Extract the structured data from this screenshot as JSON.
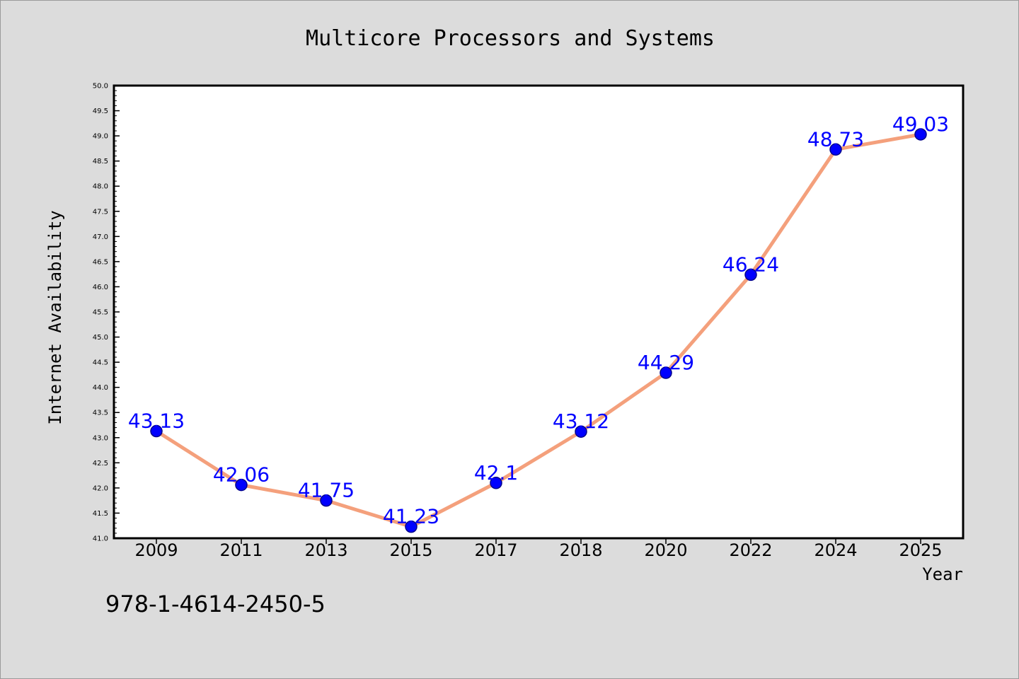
{
  "chart_data": {
    "type": "line",
    "title": "Multicore Processors and Systems",
    "xlabel": "Year",
    "ylabel": "Internet Availability",
    "categories": [
      "2009",
      "2011",
      "2013",
      "2015",
      "2017",
      "2018",
      "2020",
      "2022",
      "2024",
      "2025"
    ],
    "series": [
      {
        "values": [
          43.13,
          42.06,
          41.75,
          41.23,
          42.1,
          43.12,
          44.29,
          46.24,
          48.73,
          49.03
        ],
        "labels": [
          "43.13",
          "42.06",
          "41.75",
          "41.23",
          "42.1",
          "43.12",
          "44.29",
          "46.24",
          "48.73",
          "49.03"
        ]
      }
    ],
    "ylim": [
      41.0,
      50.0
    ],
    "yticks": [
      "41.0",
      "41.5",
      "42.0",
      "42.5",
      "43.0",
      "43.5",
      "44.0",
      "44.5",
      "45.0",
      "45.5",
      "46.0",
      "46.5",
      "47.0",
      "47.5",
      "48.0",
      "48.5",
      "49.0",
      "49.5",
      "50.0"
    ],
    "grid": false,
    "colors": {
      "line": "#f4a07c",
      "marker": "#0000ff",
      "marker_edge": "#00008b",
      "data_label": "#0000ff",
      "background": "#dcdcdc",
      "plot_background": "#ffffff"
    }
  },
  "footnote": "978-1-4614-2450-5"
}
